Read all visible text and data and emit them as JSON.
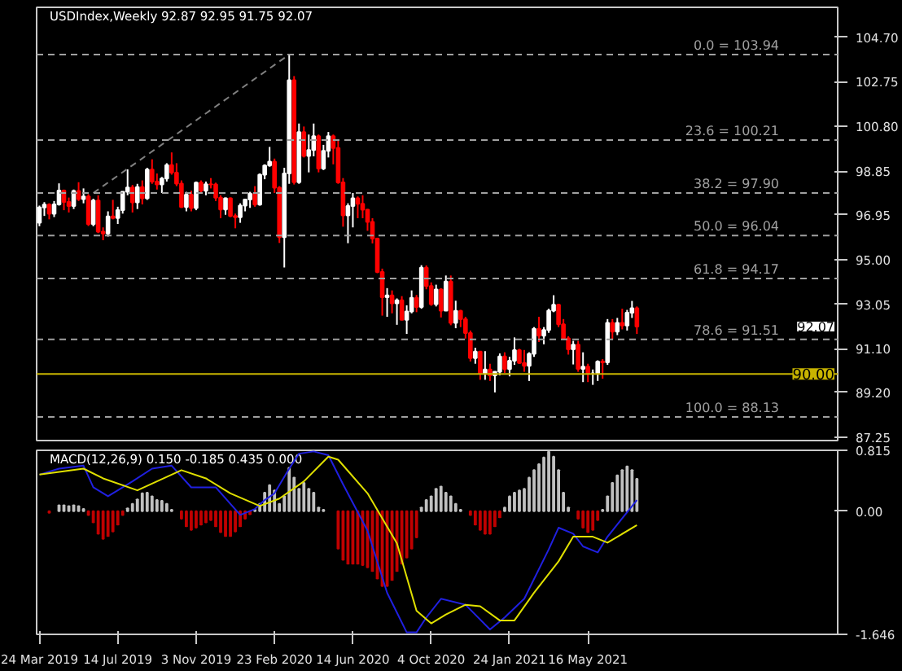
{
  "chart_data": [
    {
      "type": "candlestick",
      "title": "USDIndex,Weekly 92.87 92.95 91.75 92.07",
      "tick_labels": "y",
      "grid": false,
      "xlim": [
        "2019-03-20",
        "2022-05-08"
      ],
      "ylim": [
        87.1,
        106.0
      ],
      "yticks": [
        {
          "value": 87.25,
          "label": "87.25"
        },
        {
          "value": 89.2,
          "label": "89.20"
        },
        {
          "value": 91.1,
          "label": "91.10"
        },
        {
          "value": 93.05,
          "label": "93.05"
        },
        {
          "value": 95,
          "label": "95.00"
        },
        {
          "value": 96.95,
          "label": "96.95"
        },
        {
          "value": 98.85,
          "label": "98.85"
        },
        {
          "value": 100.8,
          "label": "100.80"
        },
        {
          "value": 102.75,
          "label": "102.75"
        },
        {
          "value": 104.7,
          "label": "104.70"
        }
      ],
      "x": [
        "2019-03-24",
        "2019-03-31",
        "2019-04-07",
        "2019-04-14",
        "2019-04-21",
        "2019-04-28",
        "2019-05-05",
        "2019-05-12",
        "2019-05-19",
        "2019-05-26",
        "2019-06-02",
        "2019-06-09",
        "2019-06-16",
        "2019-06-23",
        "2019-06-30",
        "2019-07-07",
        "2019-07-14",
        "2019-07-21",
        "2019-07-28",
        "2019-08-04",
        "2019-08-11",
        "2019-08-18",
        "2019-08-25",
        "2019-09-01",
        "2019-09-08",
        "2019-09-15",
        "2019-09-22",
        "2019-09-29",
        "2019-10-06",
        "2019-10-13",
        "2019-10-20",
        "2019-10-27",
        "2019-11-03",
        "2019-11-10",
        "2019-11-17",
        "2019-11-24",
        "2019-12-01",
        "2019-12-08",
        "2019-12-15",
        "2019-12-22",
        "2019-12-29",
        "2020-01-05",
        "2020-01-12",
        "2020-01-19",
        "2020-01-26",
        "2020-02-02",
        "2020-02-09",
        "2020-02-16",
        "2020-02-23",
        "2020-03-01",
        "2020-03-08",
        "2020-03-15",
        "2020-03-22",
        "2020-03-29",
        "2020-04-05",
        "2020-04-12",
        "2020-04-19",
        "2020-04-26",
        "2020-05-03",
        "2020-05-10",
        "2020-05-17",
        "2020-05-24",
        "2020-05-31",
        "2020-06-07",
        "2020-06-14",
        "2020-06-21",
        "2020-06-28",
        "2020-07-05",
        "2020-07-12",
        "2020-07-19",
        "2020-07-26",
        "2020-08-02",
        "2020-08-09",
        "2020-08-16",
        "2020-08-23",
        "2020-08-30",
        "2020-09-06",
        "2020-09-13",
        "2020-09-20",
        "2020-09-27",
        "2020-10-04",
        "2020-10-11",
        "2020-10-18",
        "2020-10-25",
        "2020-11-01",
        "2020-11-08",
        "2020-11-15",
        "2020-11-22",
        "2020-11-29",
        "2020-12-06",
        "2020-12-13",
        "2020-12-20",
        "2020-12-27",
        "2021-01-03",
        "2021-01-10",
        "2021-01-17",
        "2021-01-24",
        "2021-01-31",
        "2021-02-07",
        "2021-02-14",
        "2021-02-21",
        "2021-02-28",
        "2021-03-07",
        "2021-03-14",
        "2021-03-21",
        "2021-03-28",
        "2021-04-04",
        "2021-04-11",
        "2021-04-18",
        "2021-04-25",
        "2021-05-02",
        "2021-05-09",
        "2021-05-16",
        "2021-05-23",
        "2021-05-30",
        "2021-06-06",
        "2021-06-13",
        "2021-06-20",
        "2021-06-27",
        "2021-07-04",
        "2021-07-11",
        "2021-07-18",
        "2021-07-25"
      ],
      "ohlc": [
        [
          96.6,
          97.35,
          96.45,
          97.27
        ],
        [
          97.27,
          97.5,
          96.9,
          97.39
        ],
        [
          97.39,
          97.45,
          96.75,
          96.99
        ],
        [
          96.99,
          97.55,
          96.85,
          97.4
        ],
        [
          97.4,
          98.32,
          97.35,
          98.01
        ],
        [
          98.01,
          98.05,
          97.15,
          97.51
        ],
        [
          97.51,
          97.7,
          97.05,
          97.33
        ],
        [
          97.33,
          98.05,
          97.2,
          97.99
        ],
        [
          97.99,
          98.37,
          97.55,
          97.63
        ],
        [
          97.63,
          98.1,
          97.45,
          97.75
        ],
        [
          97.75,
          97.85,
          96.46,
          96.54
        ],
        [
          96.54,
          97.65,
          96.45,
          97.57
        ],
        [
          97.57,
          97.8,
          96.15,
          96.21
        ],
        [
          96.21,
          96.4,
          95.84,
          96.13
        ],
        [
          96.13,
          97.1,
          96.0,
          96.88
        ],
        [
          96.88,
          97.6,
          96.75,
          96.81
        ],
        [
          96.81,
          97.3,
          96.55,
          97.15
        ],
        [
          97.15,
          97.95,
          97.0,
          97.95
        ],
        [
          97.95,
          98.93,
          97.8,
          98.14
        ],
        [
          98.14,
          98.25,
          97.05,
          97.49
        ],
        [
          97.49,
          98.3,
          97.2,
          98.16
        ],
        [
          98.16,
          98.45,
          97.4,
          97.67
        ],
        [
          97.67,
          99.0,
          97.6,
          98.92
        ],
        [
          98.92,
          99.37,
          98.3,
          98.4
        ],
        [
          98.4,
          98.75,
          98.05,
          98.27
        ],
        [
          98.27,
          98.6,
          97.9,
          98.53
        ],
        [
          98.53,
          99.2,
          98.4,
          99.12
        ],
        [
          99.12,
          99.67,
          98.7,
          98.79
        ],
        [
          98.79,
          99.2,
          98.2,
          98.31
        ],
        [
          98.31,
          98.45,
          97.25,
          97.29
        ],
        [
          97.29,
          97.95,
          97.1,
          97.83
        ],
        [
          97.83,
          98.0,
          97.1,
          97.24
        ],
        [
          97.24,
          98.4,
          97.15,
          98.35
        ],
        [
          98.35,
          98.45,
          97.9,
          98.0
        ],
        [
          98.0,
          98.4,
          97.8,
          98.28
        ],
        [
          98.28,
          98.55,
          98.1,
          98.27
        ],
        [
          98.27,
          98.35,
          97.55,
          97.7
        ],
        [
          97.7,
          97.8,
          96.8,
          97.18
        ],
        [
          97.18,
          97.7,
          96.95,
          97.67
        ],
        [
          97.67,
          97.7,
          96.85,
          96.9
        ],
        [
          96.9,
          97.0,
          96.36,
          96.84
        ],
        [
          96.84,
          97.45,
          96.6,
          97.35
        ],
        [
          97.35,
          97.65,
          97.1,
          97.62
        ],
        [
          97.62,
          97.95,
          97.25,
          97.87
        ],
        [
          97.87,
          98.2,
          97.3,
          97.39
        ],
        [
          97.39,
          98.75,
          97.35,
          98.7
        ],
        [
          98.7,
          99.15,
          98.5,
          99.1
        ],
        [
          99.1,
          99.91,
          99.05,
          99.27
        ],
        [
          99.27,
          99.4,
          97.9,
          98.13
        ],
        [
          98.13,
          98.2,
          95.72,
          95.97
        ],
        [
          95.97,
          99.0,
          94.65,
          98.75
        ],
        [
          98.75,
          103.96,
          98.3,
          102.82
        ],
        [
          102.82,
          103.0,
          98.27,
          98.37
        ],
        [
          98.37,
          100.93,
          98.3,
          100.56
        ],
        [
          100.56,
          100.8,
          99.45,
          99.52
        ],
        [
          99.52,
          100.45,
          98.8,
          99.77
        ],
        [
          99.77,
          100.93,
          99.5,
          100.38
        ],
        [
          100.38,
          100.45,
          98.8,
          98.97
        ],
        [
          98.97,
          100.0,
          98.9,
          99.74
        ],
        [
          99.74,
          100.56,
          99.45,
          100.38
        ],
        [
          100.38,
          100.45,
          99.15,
          99.86
        ],
        [
          99.86,
          100.2,
          98.3,
          98.36
        ],
        [
          98.36,
          98.55,
          96.43,
          96.92
        ],
        [
          96.92,
          97.45,
          95.71,
          97.33
        ],
        [
          97.33,
          97.9,
          96.4,
          97.67
        ],
        [
          97.67,
          97.75,
          96.8,
          97.43
        ],
        [
          97.43,
          97.8,
          96.8,
          97.17
        ],
        [
          97.17,
          97.2,
          96.25,
          96.64
        ],
        [
          96.64,
          96.8,
          95.7,
          95.91
        ],
        [
          95.91,
          95.95,
          94.4,
          94.45
        ],
        [
          94.45,
          94.6,
          92.55,
          93.35
        ],
        [
          93.35,
          93.75,
          92.5,
          93.43
        ],
        [
          93.43,
          93.65,
          92.65,
          93.09
        ],
        [
          93.09,
          93.3,
          92.15,
          93.22
        ],
        [
          93.22,
          93.4,
          92.35,
          92.37
        ],
        [
          92.37,
          93.0,
          91.75,
          92.73
        ],
        [
          92.73,
          93.65,
          92.65,
          93.33
        ],
        [
          93.33,
          93.45,
          92.7,
          92.93
        ],
        [
          92.93,
          94.75,
          92.85,
          94.64
        ],
        [
          94.64,
          94.74,
          93.7,
          93.84
        ],
        [
          93.84,
          94.0,
          92.98,
          93.05
        ],
        [
          93.05,
          93.9,
          92.95,
          93.69
        ],
        [
          93.69,
          93.75,
          92.47,
          92.77
        ],
        [
          92.77,
          94.3,
          92.75,
          94.04
        ],
        [
          94.04,
          94.3,
          92.13,
          92.23
        ],
        [
          92.23,
          93.2,
          92.0,
          92.76
        ],
        [
          92.76,
          92.8,
          92.05,
          92.39
        ],
        [
          92.39,
          92.5,
          91.55,
          91.79
        ],
        [
          91.79,
          91.9,
          90.55,
          90.7
        ],
        [
          90.7,
          91.15,
          90.45,
          90.98
        ],
        [
          90.98,
          91.0,
          89.75,
          90.02
        ],
        [
          90.02,
          91.0,
          89.75,
          90.2
        ],
        [
          90.2,
          90.45,
          89.7,
          89.94
        ],
        [
          89.94,
          90.1,
          89.2,
          90.1
        ],
        [
          90.1,
          90.9,
          89.95,
          90.77
        ],
        [
          90.77,
          90.95,
          90.05,
          90.22
        ],
        [
          90.22,
          90.75,
          89.9,
          90.58
        ],
        [
          90.58,
          91.6,
          90.4,
          91.04
        ],
        [
          91.04,
          91.1,
          90.45,
          90.48
        ],
        [
          90.48,
          91.05,
          90.1,
          90.36
        ],
        [
          90.36,
          90.95,
          89.7,
          90.88
        ],
        [
          90.88,
          92.05,
          90.75,
          91.98
        ],
        [
          91.98,
          92.5,
          91.4,
          91.67
        ],
        [
          91.67,
          92.05,
          91.3,
          91.92
        ],
        [
          91.92,
          92.85,
          91.8,
          92.77
        ],
        [
          92.77,
          93.44,
          92.7,
          93.02
        ],
        [
          93.02,
          93.05,
          92.05,
          92.17
        ],
        [
          92.17,
          92.4,
          91.5,
          91.56
        ],
        [
          91.56,
          91.65,
          90.85,
          91.08
        ],
        [
          91.08,
          91.45,
          90.42,
          91.28
        ],
        [
          91.28,
          91.45,
          90.1,
          90.23
        ],
        [
          90.23,
          90.95,
          89.65,
          90.32
        ],
        [
          90.32,
          90.45,
          89.65,
          90.03
        ],
        [
          90.03,
          90.2,
          89.53,
          90.03
        ],
        [
          90.03,
          90.6,
          89.7,
          90.55
        ],
        [
          90.55,
          90.65,
          89.8,
          90.51
        ],
        [
          90.51,
          92.4,
          90.4,
          92.23
        ],
        [
          92.23,
          92.4,
          91.5,
          91.85
        ],
        [
          91.85,
          92.45,
          91.7,
          92.23
        ],
        [
          92.23,
          92.85,
          91.95,
          92.12
        ],
        [
          92.12,
          92.8,
          91.9,
          92.68
        ],
        [
          92.68,
          93.19,
          92.45,
          92.87
        ],
        [
          92.87,
          92.95,
          91.75,
          92.07
        ]
      ],
      "series": [
        {
          "type": "line",
          "x": [
            "2019-06-09",
            "2020-03-15"
          ],
          "values": [
            97.9,
            103.94
          ],
          "color": "#808080",
          "line_style": "dashed"
        }
      ],
      "ref_lines": [
        {
          "axis": "y",
          "value": 103.94,
          "label": "0.0 = 103.94",
          "color": "#a0a0a0",
          "line_style": "dashed"
        },
        {
          "axis": "y",
          "value": 100.21,
          "label": "23.6 = 100.21",
          "color": "#a0a0a0",
          "line_style": "dashed"
        },
        {
          "axis": "y",
          "value": 97.9,
          "label": "38.2 = 97.90",
          "color": "#a0a0a0",
          "line_style": "dashed"
        },
        {
          "axis": "y",
          "value": 96.04,
          "label": "50.0 = 96.04",
          "color": "#a0a0a0",
          "line_style": "dashed"
        },
        {
          "axis": "y",
          "value": 94.17,
          "label": "61.8 = 94.17",
          "color": "#a0a0a0",
          "line_style": "dashed"
        },
        {
          "axis": "y",
          "value": 91.51,
          "label": "78.6 = 91.51",
          "color": "#a0a0a0",
          "line_style": "dashed"
        },
        {
          "axis": "y",
          "value": 88.13,
          "label": "100.0 = 88.13",
          "color": "#a0a0a0",
          "line_style": "dashed"
        },
        {
          "axis": "y",
          "value": 90.0,
          "label": "90.00",
          "color": "#c8b400",
          "line_style": "solid"
        }
      ],
      "annotations": [
        "92.07"
      ]
    },
    {
      "type": "bar",
      "title": "MACD(12,26,9) 0.150 -0.185 0.435 0.000",
      "grid": false,
      "xlim": [
        "2019-03-20",
        "2022-05-08"
      ],
      "ylim": [
        -1.646,
        0.815
      ],
      "yticks": [
        -1.646,
        {
          "value": 0,
          "label": "0.00"
        },
        0.815
      ],
      "xticks": [
        {
          "value": "2019-03-24",
          "label": "24 Mar 2019"
        },
        {
          "value": "2019-07-14",
          "label": "14 Jul 2019"
        },
        {
          "value": "2019-11-03",
          "label": "3 Nov 2019"
        },
        {
          "value": "2020-02-23",
          "label": "23 Feb 2020"
        },
        {
          "value": "2020-06-14",
          "label": "14 Jun 2020"
        },
        {
          "value": "2020-10-04",
          "label": "4 Oct 2020"
        },
        {
          "value": "2021-01-24",
          "label": "24 Jan 2021"
        },
        {
          "value": "2021-05-16",
          "label": "16 May 2021"
        }
      ],
      "x": [
        "2019-04-07",
        "2019-04-14",
        "2019-04-21",
        "2019-04-28",
        "2019-05-05",
        "2019-05-12",
        "2019-05-19",
        "2019-05-26",
        "2019-06-02",
        "2019-06-09",
        "2019-06-16",
        "2019-06-23",
        "2019-06-30",
        "2019-07-07",
        "2019-07-14",
        "2019-07-21",
        "2019-07-28",
        "2019-08-04",
        "2019-08-11",
        "2019-08-18",
        "2019-08-25",
        "2019-09-01",
        "2019-09-08",
        "2019-09-15",
        "2019-09-22",
        "2019-09-29",
        "2019-10-06",
        "2019-10-13",
        "2019-10-20",
        "2019-10-27",
        "2019-11-03",
        "2019-11-10",
        "2019-11-17",
        "2019-11-24",
        "2019-12-01",
        "2019-12-08",
        "2019-12-15",
        "2019-12-22",
        "2019-12-29",
        "2020-01-05",
        "2020-01-12",
        "2020-01-19",
        "2020-01-26",
        "2020-02-02",
        "2020-02-09",
        "2020-02-16",
        "2020-02-23",
        "2020-03-01",
        "2020-03-08",
        "2020-03-15",
        "2020-03-22",
        "2020-03-29",
        "2020-04-05",
        "2020-04-12",
        "2020-04-19",
        "2020-04-26",
        "2020-05-03",
        "2020-05-10",
        "2020-05-17",
        "2020-05-24",
        "2020-05-31",
        "2020-06-07",
        "2020-06-14",
        "2020-06-21",
        "2020-06-28",
        "2020-07-05",
        "2020-07-12",
        "2020-07-19",
        "2020-07-26",
        "2020-08-02",
        "2020-08-09",
        "2020-08-16",
        "2020-08-23",
        "2020-08-30",
        "2020-09-06",
        "2020-09-13",
        "2020-09-20",
        "2020-09-27",
        "2020-10-04",
        "2020-10-11",
        "2020-10-18",
        "2020-10-25",
        "2020-11-01",
        "2020-11-08",
        "2020-11-15",
        "2020-11-22",
        "2020-11-29",
        "2020-12-06",
        "2020-12-13",
        "2020-12-20",
        "2020-12-27",
        "2021-01-03",
        "2021-01-10",
        "2021-01-17",
        "2021-01-24",
        "2021-01-31",
        "2021-02-07",
        "2021-02-14",
        "2021-02-21",
        "2021-02-28",
        "2021-03-07",
        "2021-03-14",
        "2021-03-21",
        "2021-03-28",
        "2021-04-04",
        "2021-04-11",
        "2021-04-18",
        "2021-04-25",
        "2021-05-02",
        "2021-05-09",
        "2021-05-16",
        "2021-05-23",
        "2021-05-30",
        "2021-06-06",
        "2021-06-13",
        "2021-06-20",
        "2021-06-27",
        "2021-07-04",
        "2021-07-11",
        "2021-07-18",
        "2021-07-25"
      ],
      "series": [
        {
          "type": "bar",
          "color": "#c0c0c0",
          "values": [
            null,
            null,
            0.08,
            0.08,
            0.07,
            0.08,
            0.07,
            0.03,
            null,
            null,
            null,
            null,
            null,
            null,
            null,
            null,
            0.04,
            0.1,
            0.16,
            0.24,
            0.25,
            0.2,
            0.15,
            0.14,
            0.1,
            0.02,
            null,
            null,
            null,
            null,
            null,
            null,
            null,
            null,
            null,
            null,
            null,
            null,
            null,
            null,
            null,
            null,
            0.02,
            0.1,
            0.25,
            0.35,
            0.28,
            0.1,
            0.2,
            0.58,
            0.45,
            0.3,
            0.38,
            0.3,
            0.25,
            0.05,
            0.02,
            null,
            null,
            null,
            null,
            null,
            null,
            null,
            null,
            null,
            null,
            null,
            null,
            null,
            null,
            null,
            null,
            null,
            null,
            null,
            0.05,
            0.15,
            0.2,
            0.3,
            0.33,
            0.25,
            0.2,
            0.1,
            0.02,
            null,
            null,
            null,
            null,
            null,
            null,
            null,
            null,
            0.05,
            0.2,
            0.25,
            0.28,
            0.3,
            0.45,
            0.55,
            0.63,
            0.72,
            0.8,
            0.73,
            0.55,
            0.25,
            0.05,
            null,
            null,
            null,
            null,
            null,
            null,
            0.02,
            0.2,
            0.38,
            0.48,
            0.55,
            0.6,
            0.55,
            0.435
          ]
        },
        {
          "type": "bar",
          "color": "#c00000",
          "values": [
            -0.02,
            null,
            null,
            null,
            null,
            null,
            null,
            null,
            -0.05,
            -0.15,
            -0.3,
            -0.37,
            -0.33,
            -0.27,
            -0.18,
            -0.05,
            null,
            null,
            null,
            null,
            null,
            null,
            null,
            null,
            null,
            null,
            null,
            -0.1,
            -0.2,
            -0.25,
            -0.22,
            -0.18,
            -0.15,
            -0.12,
            -0.2,
            -0.28,
            -0.33,
            -0.33,
            -0.27,
            -0.2,
            -0.1,
            -0.04,
            null,
            null,
            null,
            null,
            null,
            null,
            null,
            null,
            null,
            null,
            null,
            null,
            null,
            null,
            null,
            null,
            null,
            -0.5,
            -0.65,
            -0.7,
            -0.7,
            -0.7,
            -0.72,
            -0.75,
            -0.8,
            -0.9,
            -1.0,
            -1.0,
            -0.92,
            -0.8,
            -0.7,
            -0.62,
            -0.5,
            -0.35,
            null,
            null,
            null,
            null,
            null,
            null,
            null,
            null,
            null,
            null,
            -0.05,
            -0.18,
            -0.25,
            -0.3,
            -0.3,
            -0.2,
            -0.08,
            null,
            null,
            null,
            null,
            null,
            null,
            null,
            null,
            null,
            null,
            null,
            null,
            null,
            null,
            null,
            -0.1,
            -0.22,
            -0.28,
            -0.25,
            -0.12,
            null,
            null,
            null,
            null,
            null,
            null,
            null,
            null
          ]
        },
        {
          "type": "line",
          "color": "#2020e0",
          "x": [
            "2019-03-24",
            "2019-04-21",
            "2019-05-26",
            "2019-06-09",
            "2019-06-30",
            "2019-07-14",
            "2019-08-04",
            "2019-09-01",
            "2019-09-29",
            "2019-10-27",
            "2019-12-01",
            "2020-01-05",
            "2020-01-26",
            "2020-02-09",
            "2020-02-23",
            "2020-03-15",
            "2020-03-29",
            "2020-04-19",
            "2020-05-10",
            "2020-05-31",
            "2020-07-05",
            "2020-08-02",
            "2020-08-30",
            "2020-09-13",
            "2020-09-27",
            "2020-10-18",
            "2020-11-22",
            "2020-12-27",
            "2021-01-17",
            "2021-02-14",
            "2021-03-21",
            "2021-04-04",
            "2021-04-25",
            "2021-05-09",
            "2021-05-30",
            "2021-06-13",
            "2021-07-25"
          ],
          "values": [
            0.49,
            0.57,
            0.61,
            0.32,
            0.2,
            0.28,
            0.4,
            0.57,
            0.61,
            0.32,
            0.32,
            -0.05,
            0.03,
            0.15,
            0.24,
            0.57,
            0.77,
            0.8,
            0.75,
            0.36,
            -0.26,
            -1.09,
            -1.62,
            -1.62,
            -1.42,
            -1.17,
            -1.25,
            -1.58,
            -1.42,
            -1.17,
            -0.51,
            -0.22,
            -0.3,
            -0.47,
            -0.55,
            -0.34,
            0.15
          ]
        },
        {
          "type": "line",
          "color": "#e0e000",
          "x": [
            "2019-03-24",
            "2019-05-26",
            "2019-06-23",
            "2019-08-11",
            "2019-10-13",
            "2019-11-17",
            "2019-12-22",
            "2020-02-02",
            "2020-03-01",
            "2020-04-05",
            "2020-05-10",
            "2020-05-24",
            "2020-07-05",
            "2020-08-16",
            "2020-09-13",
            "2020-10-04",
            "2020-10-25",
            "2020-11-22",
            "2020-12-13",
            "2021-01-10",
            "2021-01-31",
            "2021-02-28",
            "2021-04-04",
            "2021-04-25",
            "2021-05-23",
            "2021-06-13",
            "2021-07-25"
          ],
          "values": [
            0.49,
            0.57,
            0.44,
            0.28,
            0.55,
            0.44,
            0.24,
            0.07,
            0.17,
            0.4,
            0.73,
            0.69,
            0.24,
            -0.43,
            -1.33,
            -1.5,
            -1.38,
            -1.25,
            -1.27,
            -1.46,
            -1.46,
            -1.09,
            -0.67,
            -0.34,
            -0.34,
            -0.42,
            -0.185
          ]
        }
      ]
    }
  ]
}
